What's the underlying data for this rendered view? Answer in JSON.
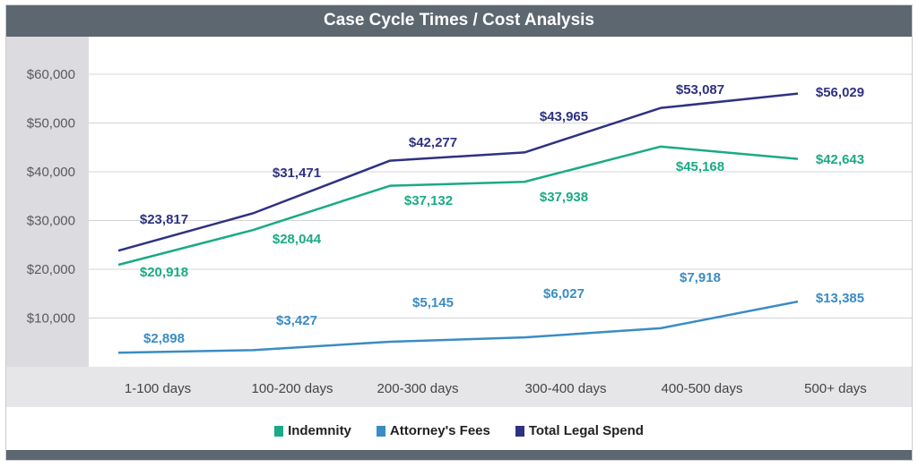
{
  "chart_data": {
    "type": "line",
    "title": "Case Cycle Times / Cost Analysis",
    "categories": [
      "1-100 days",
      "100-200 days",
      "200-300 days",
      "300-400 days",
      "400-500 days",
      "500+ days"
    ],
    "ylim": [
      0,
      60000
    ],
    "yticks": [
      "$10,000",
      "$20,000",
      "$30,000",
      "$40,000",
      "$50,000",
      "$60,000"
    ],
    "ytick_values": [
      10000,
      20000,
      30000,
      40000,
      50000,
      60000
    ],
    "grid": true,
    "legend_position": "bottom",
    "series": [
      {
        "name": "Indemnity",
        "color": "#1aaa85",
        "values": [
          20918,
          28044,
          37132,
          37938,
          45168,
          42643
        ],
        "labels": [
          "$20,918",
          "$28,044",
          "$37,132",
          "$37,938",
          "$45,168",
          "$42,643"
        ]
      },
      {
        "name": "Attorney's Fees",
        "color": "#3a8cc4",
        "values": [
          2898,
          3427,
          5145,
          6027,
          7918,
          13385
        ],
        "labels": [
          "$2,898",
          "$3,427",
          "$5,145",
          "$6,027",
          "$7,918",
          "$13,385"
        ]
      },
      {
        "name": "Total Legal Spend",
        "color": "#2e3282",
        "values": [
          23817,
          31471,
          42277,
          43965,
          53087,
          56029
        ],
        "labels": [
          "$23,817",
          "$31,471",
          "$42,277",
          "$43,965",
          "$53,087",
          "$56,029"
        ]
      }
    ]
  }
}
